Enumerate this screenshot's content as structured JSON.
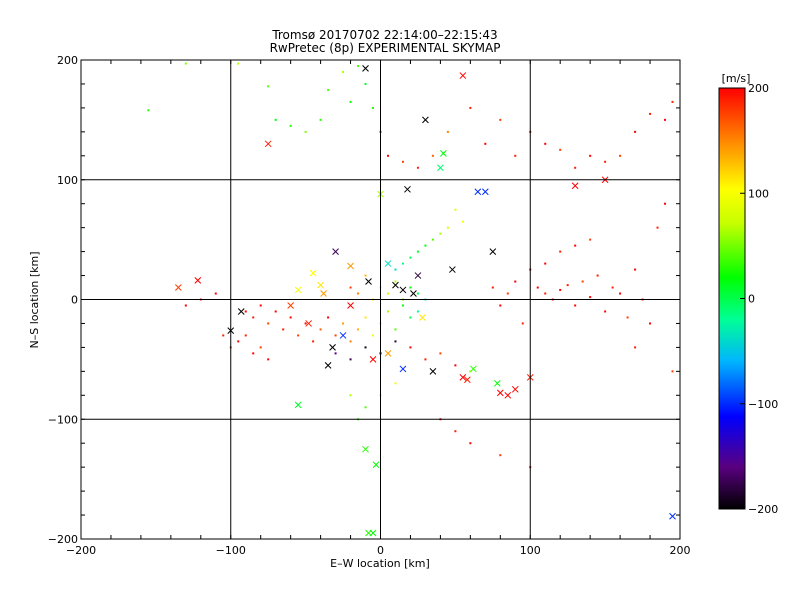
{
  "chart_data": {
    "type": "scatter",
    "title": "Tromsø 20170702 22:14:00–22:15:43",
    "subtitle": "RwPretec (8p) EXPERIMENTAL SKYMAP",
    "xlabel": "E–W location [km]",
    "ylabel": "N–S location [km]",
    "xlim": [
      -200,
      200
    ],
    "ylim": [
      -200,
      200
    ],
    "xticks": [
      -200,
      -100,
      0,
      100,
      200
    ],
    "yticks": [
      -200,
      -100,
      0,
      100,
      200
    ],
    "x_tick_labels": [
      "−200",
      "−100",
      "0",
      "100",
      "200"
    ],
    "y_tick_labels": [
      "−200",
      "−100",
      "0",
      "100",
      "200"
    ],
    "grid": true,
    "colorbar": {
      "label": "[m/s]",
      "range": [
        -200,
        200
      ],
      "ticks": [
        200,
        100,
        0,
        -100,
        -200
      ],
      "tick_labels": [
        "200",
        "100",
        "0",
        "−100",
        "−200"
      ],
      "colormap": [
        "#000000",
        "#5a0080",
        "#0000ff",
        "#00b4ff",
        "#00ff96",
        "#00ff00",
        "#c8ff00",
        "#ffff00",
        "#ff8c00",
        "#ff0000"
      ]
    },
    "series": [
      {
        "marker": "x",
        "points": [
          [
            -135,
            10,
            180
          ],
          [
            -122,
            16,
            200
          ],
          [
            -100,
            -26,
            -200
          ],
          [
            -93,
            -10,
            -200
          ],
          [
            -75,
            130,
            190
          ],
          [
            -55,
            -88,
            10
          ],
          [
            -45,
            22,
            110
          ],
          [
            -40,
            12,
            120
          ],
          [
            -38,
            5,
            150
          ],
          [
            -35,
            -55,
            -200
          ],
          [
            -30,
            40,
            -170
          ],
          [
            -25,
            -30,
            -100
          ],
          [
            -20,
            28,
            150
          ],
          [
            -10,
            193,
            -200
          ],
          [
            -8,
            15,
            -200
          ],
          [
            -5,
            -50,
            200
          ],
          [
            0,
            88,
            60
          ],
          [
            5,
            30,
            -40
          ],
          [
            10,
            12,
            -200
          ],
          [
            15,
            8,
            -200
          ],
          [
            18,
            92,
            -200
          ],
          [
            22,
            5,
            -200
          ],
          [
            25,
            20,
            -180
          ],
          [
            30,
            150,
            -200
          ],
          [
            35,
            -60,
            -200
          ],
          [
            48,
            25,
            -200
          ],
          [
            55,
            187,
            200
          ],
          [
            55,
            -65,
            200
          ],
          [
            58,
            -67,
            190
          ],
          [
            62,
            -58,
            30
          ],
          [
            65,
            90,
            -100
          ],
          [
            70,
            90,
            -100
          ],
          [
            75,
            40,
            -200
          ],
          [
            78,
            -70,
            20
          ],
          [
            80,
            -78,
            200
          ],
          [
            85,
            -80,
            200
          ],
          [
            90,
            -75,
            200
          ],
          [
            100,
            -65,
            190
          ],
          [
            130,
            95,
            200
          ],
          [
            150,
            100,
            200
          ],
          [
            195,
            -181,
            -100
          ],
          [
            -8,
            -195,
            30
          ],
          [
            -5,
            -195,
            20
          ],
          [
            -10,
            -125,
            30
          ],
          [
            -3,
            -138,
            20
          ],
          [
            40,
            110,
            -10
          ],
          [
            42,
            122,
            20
          ],
          [
            -55,
            8,
            100
          ],
          [
            -60,
            -5,
            180
          ],
          [
            -48,
            -20,
            190
          ],
          [
            -20,
            -5,
            200
          ],
          [
            5,
            -45,
            150
          ],
          [
            15,
            -58,
            -100
          ],
          [
            -32,
            -40,
            -200
          ],
          [
            28,
            -15,
            120
          ]
        ]
      },
      {
        "marker": "dot",
        "points": [
          [
            -155,
            158,
            30
          ],
          [
            -130,
            197,
            50
          ],
          [
            -95,
            197,
            60
          ],
          [
            -75,
            178,
            40
          ],
          [
            -70,
            150,
            20
          ],
          [
            -60,
            145,
            30
          ],
          [
            -50,
            140,
            50
          ],
          [
            -40,
            150,
            30
          ],
          [
            -35,
            175,
            40
          ],
          [
            -25,
            190,
            60
          ],
          [
            -20,
            165,
            20
          ],
          [
            -15,
            195,
            40
          ],
          [
            -10,
            180,
            10
          ],
          [
            -5,
            160,
            30
          ],
          [
            0,
            140,
            190
          ],
          [
            5,
            120,
            200
          ],
          [
            15,
            115,
            180
          ],
          [
            25,
            110,
            190
          ],
          [
            35,
            120,
            170
          ],
          [
            45,
            140,
            160
          ],
          [
            60,
            160,
            190
          ],
          [
            70,
            130,
            200
          ],
          [
            80,
            150,
            180
          ],
          [
            90,
            120,
            190
          ],
          [
            100,
            140,
            200
          ],
          [
            110,
            130,
            200
          ],
          [
            120,
            125,
            180
          ],
          [
            130,
            110,
            190
          ],
          [
            140,
            120,
            200
          ],
          [
            150,
            115,
            190
          ],
          [
            160,
            120,
            180
          ],
          [
            170,
            140,
            200
          ],
          [
            180,
            155,
            190
          ],
          [
            190,
            150,
            200
          ],
          [
            195,
            165,
            190
          ],
          [
            105,
            10,
            200
          ],
          [
            110,
            5,
            190
          ],
          [
            115,
            0,
            200
          ],
          [
            120,
            8,
            200
          ],
          [
            125,
            12,
            190
          ],
          [
            130,
            -5,
            200
          ],
          [
            135,
            15,
            180
          ],
          [
            140,
            2,
            200
          ],
          [
            145,
            20,
            190
          ],
          [
            150,
            -10,
            200
          ],
          [
            155,
            10,
            190
          ],
          [
            160,
            5,
            200
          ],
          [
            165,
            -15,
            180
          ],
          [
            170,
            25,
            200
          ],
          [
            175,
            0,
            190
          ],
          [
            110,
            30,
            200
          ],
          [
            120,
            40,
            190
          ],
          [
            130,
            45,
            200
          ],
          [
            140,
            50,
            180
          ],
          [
            100,
            25,
            200
          ],
          [
            95,
            -20,
            190
          ],
          [
            90,
            15,
            200
          ],
          [
            85,
            5,
            180
          ],
          [
            80,
            -5,
            200
          ],
          [
            75,
            10,
            190
          ],
          [
            50,
            75,
            90
          ],
          [
            55,
            65,
            100
          ],
          [
            45,
            60,
            80
          ],
          [
            40,
            55,
            60
          ],
          [
            35,
            50,
            40
          ],
          [
            30,
            45,
            20
          ],
          [
            25,
            40,
            10
          ],
          [
            20,
            35,
            0
          ],
          [
            15,
            30,
            -20
          ],
          [
            10,
            25,
            -40
          ],
          [
            -90,
            -10,
            200
          ],
          [
            -85,
            -15,
            190
          ],
          [
            -80,
            -5,
            200
          ],
          [
            -75,
            -20,
            180
          ],
          [
            -70,
            -10,
            200
          ],
          [
            -65,
            -25,
            190
          ],
          [
            -60,
            -15,
            200
          ],
          [
            -55,
            -30,
            180
          ],
          [
            -50,
            -20,
            200
          ],
          [
            -45,
            -35,
            190
          ],
          [
            -40,
            -25,
            170
          ],
          [
            -35,
            -15,
            200
          ],
          [
            -30,
            -30,
            180
          ],
          [
            -25,
            -20,
            150
          ],
          [
            -20,
            -35,
            160
          ],
          [
            -15,
            -25,
            140
          ],
          [
            -10,
            -15,
            120
          ],
          [
            -5,
            -30,
            100
          ],
          [
            0,
            -20,
            80
          ],
          [
            5,
            -10,
            60
          ],
          [
            10,
            -25,
            40
          ],
          [
            15,
            -5,
            20
          ],
          [
            20,
            -15,
            0
          ],
          [
            25,
            -10,
            -20
          ],
          [
            30,
            0,
            -40
          ],
          [
            -20,
            10,
            180
          ],
          [
            -15,
            5,
            160
          ],
          [
            -10,
            20,
            140
          ],
          [
            -5,
            0,
            120
          ],
          [
            0,
            10,
            100
          ],
          [
            5,
            5,
            80
          ],
          [
            10,
            15,
            60
          ],
          [
            15,
            0,
            40
          ],
          [
            20,
            10,
            20
          ],
          [
            25,
            5,
            0
          ],
          [
            -30,
            -45,
            -150
          ],
          [
            -20,
            -50,
            -170
          ],
          [
            -10,
            -40,
            -190
          ],
          [
            0,
            -45,
            -200
          ],
          [
            10,
            -35,
            -180
          ],
          [
            20,
            -40,
            200
          ],
          [
            30,
            -50,
            190
          ],
          [
            40,
            -45,
            180
          ],
          [
            50,
            -55,
            200
          ],
          [
            60,
            -60,
            50
          ],
          [
            -130,
            -5,
            200
          ],
          [
            -120,
            0,
            190
          ],
          [
            -110,
            5,
            200
          ],
          [
            -105,
            -30,
            190
          ],
          [
            -100,
            -40,
            180
          ],
          [
            -95,
            -35,
            200
          ],
          [
            -90,
            -30,
            190
          ],
          [
            -85,
            -45,
            200
          ],
          [
            -80,
            -40,
            180
          ],
          [
            -75,
            -50,
            200
          ],
          [
            40,
            -100,
            200
          ],
          [
            50,
            -110,
            190
          ],
          [
            60,
            -120,
            200
          ],
          [
            80,
            -130,
            180
          ],
          [
            100,
            -140,
            200
          ],
          [
            -10,
            -90,
            40
          ],
          [
            -15,
            -100,
            30
          ],
          [
            -20,
            -80,
            60
          ],
          [
            0,
            -80,
            80
          ],
          [
            10,
            -70,
            100
          ],
          [
            170,
            -40,
            190
          ],
          [
            180,
            -20,
            200
          ],
          [
            185,
            60,
            190
          ],
          [
            190,
            80,
            200
          ],
          [
            195,
            -60,
            180
          ]
        ]
      }
    ]
  }
}
